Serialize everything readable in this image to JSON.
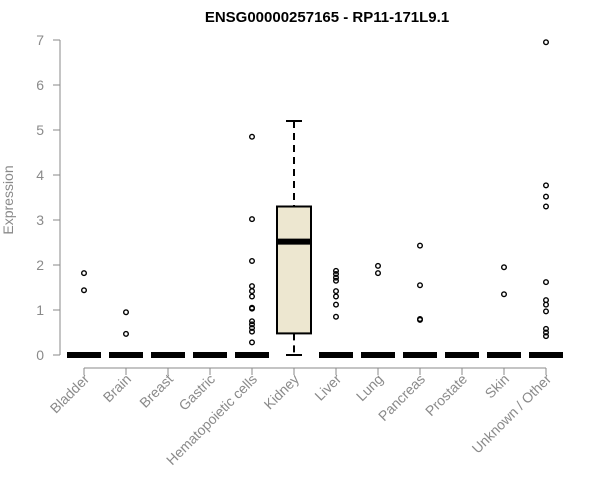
{
  "chart_data": {
    "type": "box",
    "title": "ENSG00000257165 - RP11-171L9.1",
    "xlabel": "",
    "ylabel": "Expression",
    "ylim": [
      0,
      7
    ],
    "yticks": [
      "0",
      "1",
      "2",
      "3",
      "4",
      "5",
      "6",
      "7"
    ],
    "grid": false,
    "legend": "none",
    "box_fill": "#ede7d0",
    "categories": [
      "Bladder",
      "Brain",
      "Breast",
      "Gastric",
      "Hematopoietic cells",
      "Kidney",
      "Liver",
      "Lung",
      "Pancreas",
      "Prostate",
      "Skin",
      "Unknown / Other"
    ],
    "boxes": [
      {
        "category": "Bladder",
        "q1": 0,
        "median": 0,
        "q3": 0,
        "whisker_low": 0,
        "whisker_high": 0,
        "outliers": [
          1.82,
          1.44
        ]
      },
      {
        "category": "Brain",
        "q1": 0,
        "median": 0,
        "q3": 0,
        "whisker_low": 0,
        "whisker_high": 0,
        "outliers": [
          0.95,
          0.47
        ]
      },
      {
        "category": "Breast",
        "q1": 0,
        "median": 0,
        "q3": 0,
        "whisker_low": 0,
        "whisker_high": 0,
        "outliers": []
      },
      {
        "category": "Gastric",
        "q1": 0,
        "median": 0,
        "q3": 0,
        "whisker_low": 0,
        "whisker_high": 0,
        "outliers": []
      },
      {
        "category": "Hematopoietic cells",
        "q1": 0,
        "median": 0,
        "q3": 0,
        "whisker_low": 0,
        "whisker_high": 0,
        "outliers": [
          4.85,
          3.02,
          2.09,
          1.53,
          1.42,
          1.3,
          1.05,
          1.03,
          0.75,
          0.68,
          0.6,
          0.52,
          0.28
        ]
      },
      {
        "category": "Kidney",
        "q1": 0.48,
        "median": 2.52,
        "q3": 3.3,
        "whisker_low": 0,
        "whisker_high": 5.2,
        "outliers": []
      },
      {
        "category": "Liver",
        "q1": 0,
        "median": 0,
        "q3": 0,
        "whisker_low": 0,
        "whisker_high": 0,
        "outliers": [
          1.87,
          1.8,
          1.72,
          1.65,
          1.42,
          1.3,
          1.12,
          0.85
        ]
      },
      {
        "category": "Lung",
        "q1": 0,
        "median": 0,
        "q3": 0,
        "whisker_low": 0,
        "whisker_high": 0,
        "outliers": [
          1.98,
          1.82
        ]
      },
      {
        "category": "Pancreas",
        "q1": 0,
        "median": 0,
        "q3": 0,
        "whisker_low": 0,
        "whisker_high": 0,
        "outliers": [
          2.43,
          1.55,
          0.8,
          0.78
        ]
      },
      {
        "category": "Prostate",
        "q1": 0,
        "median": 0,
        "q3": 0,
        "whisker_low": 0,
        "whisker_high": 0,
        "outliers": []
      },
      {
        "category": "Skin",
        "q1": 0,
        "median": 0,
        "q3": 0,
        "whisker_low": 0,
        "whisker_high": 0,
        "outliers": [
          1.95,
          1.35
        ]
      },
      {
        "category": "Unknown / Other",
        "q1": 0,
        "median": 0,
        "q3": 0,
        "whisker_low": 0,
        "whisker_high": 0,
        "outliers": [
          6.95,
          3.77,
          3.52,
          3.3,
          1.62,
          1.22,
          1.12,
          0.97,
          0.58,
          0.5,
          0.42
        ]
      }
    ]
  }
}
